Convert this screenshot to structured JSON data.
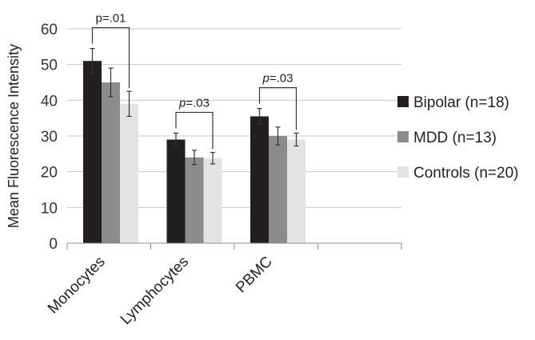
{
  "chart_data": {
    "type": "bar",
    "ylabel": "Mean Fluorescence Intensity",
    "xlabel": "",
    "ylim": [
      0,
      60
    ],
    "yticks": [
      0,
      10,
      20,
      30,
      40,
      50,
      60
    ],
    "grid": true,
    "legend_position": "right",
    "categories": [
      "Monocytes",
      "Lymphocytes",
      "PBMC",
      ""
    ],
    "series": [
      {
        "name": "Bipolar (n=18)",
        "color": "#231f20",
        "values": [
          51,
          29,
          35.5,
          null
        ],
        "errors": [
          3.5,
          1.8,
          2.2,
          null
        ]
      },
      {
        "name": "MDD (n=13)",
        "color": "#8c8c8c",
        "values": [
          45,
          24,
          30,
          null
        ],
        "errors": [
          4,
          2,
          2.5,
          null
        ]
      },
      {
        "name": "Controls (n=20)",
        "color": "#e3e3e3",
        "values": [
          39,
          23.8,
          29,
          null
        ],
        "errors": [
          3.5,
          1.6,
          1.8,
          null
        ]
      }
    ],
    "annotations": [
      {
        "category": 0,
        "prefix": "p",
        "text": "=.01",
        "italic_prefix": false
      },
      {
        "category": 1,
        "prefix": "p",
        "text": "=.03",
        "italic_prefix": true
      },
      {
        "category": 2,
        "prefix": "p",
        "text": "=.03",
        "italic_prefix": true
      }
    ]
  }
}
